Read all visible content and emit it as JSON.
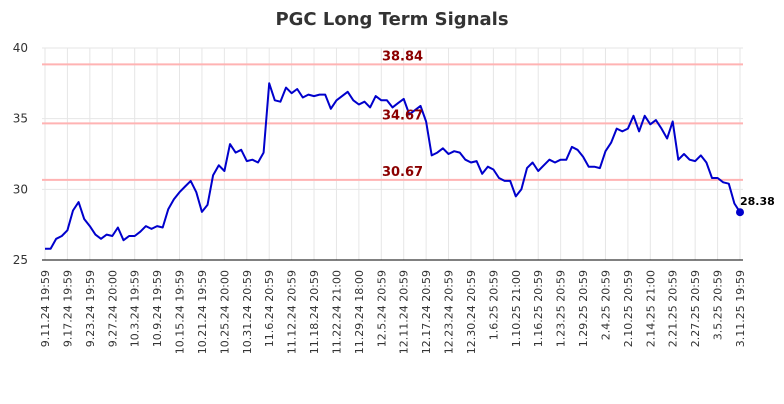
{
  "chart_data": {
    "type": "line",
    "title": "PGC Long Term Signals",
    "ylim": [
      25,
      40
    ],
    "yticks": [
      "25",
      "30",
      "35",
      "40"
    ],
    "xticks": [
      "9.11.24 19:59",
      "9.17.24 19:59",
      "9.23.24 19:59",
      "9.27.24 20:00",
      "10.3.24 19:59",
      "10.9.24 19:59",
      "10.15.24 19:59",
      "10.21.24 19:59",
      "10.25.24 20:00",
      "10.31.24 20:59",
      "11.6.24 20:59",
      "11.12.24 20:59",
      "11.18.24 20:59",
      "11.22.24 21:00",
      "11.29.24 18:00",
      "12.5.24 20:59",
      "12.11.24 20:59",
      "12.17.24 20:59",
      "12.23.24 20:59",
      "12.30.24 20:59",
      "1.6.25 20:59",
      "1.10.25 21:00",
      "1.16.25 20:59",
      "1.23.25 20:59",
      "1.29.25 20:59",
      "2.4.25 20:59",
      "2.10.25 20:59",
      "2.14.25 21:00",
      "2.21.25 20:59",
      "2.27.25 20:59",
      "3.5.25 20:59",
      "3.11.25 19:59"
    ],
    "reference_lines": [
      {
        "value": 38.84,
        "label": "38.84"
      },
      {
        "value": 34.67,
        "label": "34.67"
      },
      {
        "value": 30.67,
        "label": "30.67"
      }
    ],
    "last_value_label": "28.38",
    "series": [
      {
        "values": [
          25.8,
          25.8,
          26.5,
          26.7,
          27.1,
          28.5,
          29.1,
          27.9,
          27.4,
          26.8,
          26.5,
          26.8,
          26.7,
          27.3,
          26.4,
          26.7,
          26.7,
          27.0,
          27.4,
          27.2,
          27.4,
          27.3,
          28.6,
          29.3,
          29.8,
          30.2,
          30.6,
          29.8,
          28.4,
          28.9,
          31.0,
          31.7,
          31.3,
          33.2,
          32.6,
          32.8,
          32.0,
          32.1,
          31.9,
          32.6,
          37.5,
          36.3,
          36.2,
          37.2,
          36.8,
          37.1,
          36.5,
          36.7,
          36.6,
          36.7,
          36.7,
          35.7,
          36.3,
          36.6,
          36.9,
          36.3,
          36.0,
          36.2,
          35.8,
          36.6,
          36.3,
          36.3,
          35.8,
          36.1,
          36.4,
          35.3,
          35.6,
          35.9,
          34.8,
          32.4,
          32.6,
          32.9,
          32.5,
          32.7,
          32.6,
          32.1,
          31.9,
          32.0,
          31.1,
          31.6,
          31.4,
          30.8,
          30.6,
          30.6,
          29.5,
          30.0,
          31.5,
          31.9,
          31.3,
          31.7,
          32.1,
          31.9,
          32.1,
          32.1,
          33.0,
          32.8,
          32.3,
          31.6,
          31.6,
          31.5,
          32.7,
          33.3,
          34.3,
          34.1,
          34.3,
          35.2,
          34.1,
          35.2,
          34.6,
          34.9,
          34.3,
          33.6,
          34.8,
          32.1,
          32.5,
          32.1,
          32.0,
          32.4,
          31.9,
          30.8,
          30.8,
          30.5,
          30.4,
          29.0,
          28.38
        ]
      }
    ],
    "colors": {
      "line": "#0000cc",
      "reference_line": "#ffb3b3",
      "reference_label": "#8b0000",
      "grid": "#e6e6e6",
      "axis": "#000000"
    }
  }
}
